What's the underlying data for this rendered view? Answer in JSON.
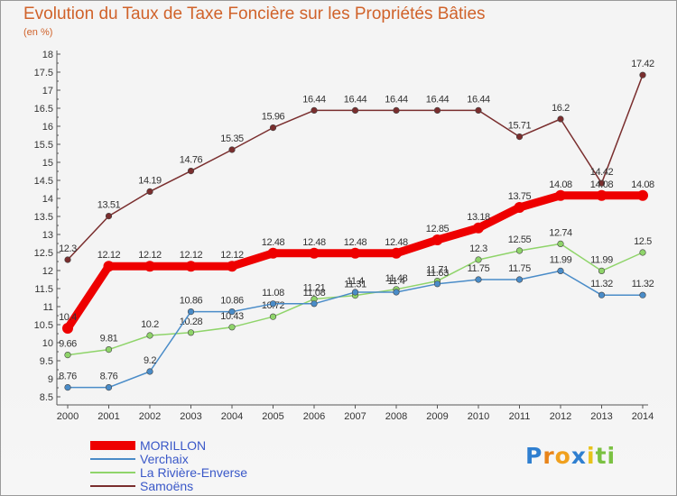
{
  "title": "Evolution du Taux de Taxe Foncière sur les Propriétés Bâties",
  "unit": "(en %)",
  "logo": {
    "text": "Proxiti",
    "letters": [
      "P",
      "r",
      "o",
      "x",
      "i",
      "t",
      "i"
    ]
  },
  "chart_data": {
    "type": "line",
    "title": "Evolution du Taux de Taxe Foncière sur les Propriétés Bâties",
    "ylabel": "(en %)",
    "xlabel": "",
    "ylim": [
      8.5,
      18
    ],
    "y_ticks": [
      "8.5",
      "9",
      "9.5",
      "10",
      "10.5",
      "11",
      "11.5",
      "12",
      "12.5",
      "13",
      "13.5",
      "14",
      "14.5",
      "15",
      "15.5",
      "16",
      "16.5",
      "17",
      "17.5",
      "18"
    ],
    "categories": [
      "2000",
      "2001",
      "2002",
      "2003",
      "2004",
      "2005",
      "2006",
      "2007",
      "2008",
      "2009",
      "2010",
      "2011",
      "2012",
      "2013",
      "2014"
    ],
    "grid": false,
    "legend_position": "bottom-left",
    "series": [
      {
        "name": "Samoëns",
        "color": "#7a2e2e",
        "values": [
          12.3,
          13.51,
          14.19,
          14.76,
          15.35,
          15.96,
          16.44,
          16.44,
          16.44,
          16.44,
          16.44,
          15.71,
          16.2,
          14.42,
          17.42
        ],
        "labels": [
          "12.3",
          "13.51",
          "14.19",
          "14.76",
          "15.35",
          "15.96",
          "16.44",
          "16.44",
          "16.44",
          "16.44",
          "16.44",
          "15.71",
          "16.2",
          "14.42",
          "17.42"
        ]
      },
      {
        "name": "La Rivière-Enverse",
        "color": "#8fd46a",
        "values": [
          9.66,
          9.81,
          10.2,
          10.28,
          10.43,
          10.72,
          11.21,
          11.31,
          11.48,
          11.71,
          12.3,
          12.55,
          12.74,
          11.99,
          12.5
        ],
        "labels": [
          "9.66",
          "9.81",
          "10.2",
          "10.28",
          "10.43",
          "10.72",
          "11.21",
          "11.31",
          "11.48",
          "11.71",
          "12.3",
          "12.55",
          "12.74",
          "11.99",
          "12.5"
        ]
      },
      {
        "name": "Verchaix",
        "color": "#4a8cc8",
        "values": [
          8.76,
          8.76,
          9.2,
          10.86,
          10.86,
          11.08,
          11.08,
          11.4,
          11.4,
          11.63,
          11.75,
          11.75,
          11.99,
          11.32,
          11.32
        ],
        "labels": [
          "8.76",
          "8.76",
          "9.2",
          "10.86",
          "10.86",
          "11.08",
          "11.08",
          "11.4",
          "11.4",
          "11.63",
          "11.75",
          "11.75",
          "11.99",
          "11.32",
          "11.32"
        ]
      },
      {
        "name": "MORILLON",
        "color": "#ee0000",
        "values": [
          10.4,
          12.12,
          12.12,
          12.12,
          12.12,
          12.48,
          12.48,
          12.48,
          12.48,
          12.85,
          13.18,
          13.75,
          14.08,
          14.08,
          14.08
        ],
        "labels": [
          "10.4",
          "12.12",
          "12.12",
          "12.12",
          "12.12",
          "12.48",
          "12.48",
          "12.48",
          "12.48",
          "12.85",
          "13.18",
          "13.75",
          "14.08",
          "14.08",
          "14.08"
        ]
      }
    ],
    "legend": [
      "MORILLON",
      "Verchaix",
      "La Rivière-Enverse",
      "Samoëns"
    ]
  }
}
